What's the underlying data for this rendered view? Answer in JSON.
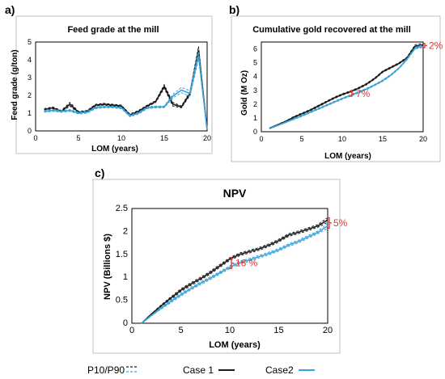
{
  "panels": {
    "a": "a)",
    "b": "b)",
    "c": "c)"
  },
  "legend": {
    "p10p90": "P10/P90",
    "case1": "Case 1",
    "case2": "Case2"
  },
  "colors": {
    "case1": "#1a1a1a",
    "case2": "#3aa3dc",
    "annotation": "#e8302a"
  },
  "chart_data": [
    {
      "id": "a",
      "type": "line",
      "title": "Feed grade at the mill",
      "xlabel": "LOM (years)",
      "ylabel": "Feed grade (g/ton)",
      "xlim": [
        0,
        20
      ],
      "ylim": [
        0,
        5
      ],
      "xticks": [
        0,
        5,
        10,
        15,
        20
      ],
      "yticks": [
        0,
        1,
        2,
        3,
        4,
        5
      ],
      "x": [
        1,
        2,
        3,
        4,
        5,
        6,
        7,
        8,
        9,
        10,
        11,
        12,
        13,
        14,
        15,
        16,
        17,
        18,
        19,
        20
      ],
      "series": [
        {
          "name": "Case 1",
          "values": [
            1.2,
            1.3,
            1.1,
            1.5,
            1.05,
            1.1,
            1.45,
            1.5,
            1.45,
            1.4,
            0.9,
            1.1,
            1.4,
            1.65,
            2.5,
            1.5,
            1.35,
            2.1,
            4.55,
            0.05
          ],
          "p10": [
            1.15,
            1.25,
            1.05,
            1.4,
            1.0,
            1.05,
            1.4,
            1.45,
            1.4,
            1.35,
            0.85,
            1.05,
            1.35,
            1.6,
            2.4,
            1.4,
            1.3,
            2.0,
            4.3,
            0.05
          ],
          "p90": [
            1.25,
            1.35,
            1.15,
            1.6,
            1.1,
            1.15,
            1.5,
            1.55,
            1.5,
            1.45,
            0.95,
            1.15,
            1.45,
            1.7,
            2.6,
            1.6,
            1.4,
            2.2,
            4.75,
            0.05
          ]
        },
        {
          "name": "Case2",
          "values": [
            1.1,
            1.15,
            1.1,
            1.15,
            1.0,
            1.05,
            1.3,
            1.35,
            1.35,
            1.3,
            0.85,
            1.0,
            1.3,
            1.35,
            1.35,
            1.95,
            2.3,
            2.1,
            4.25,
            0.05
          ],
          "p10": [
            1.05,
            1.1,
            1.05,
            1.1,
            0.95,
            1.0,
            1.25,
            1.3,
            1.3,
            1.25,
            0.8,
            0.95,
            1.25,
            1.3,
            1.3,
            1.85,
            2.15,
            1.95,
            4.05,
            0.05
          ],
          "p90": [
            1.15,
            1.2,
            1.15,
            1.2,
            1.05,
            1.1,
            1.35,
            1.4,
            1.4,
            1.35,
            0.9,
            1.05,
            1.35,
            1.4,
            1.4,
            2.05,
            2.45,
            2.25,
            4.45,
            0.05
          ]
        }
      ]
    },
    {
      "id": "b",
      "type": "line",
      "title": "Cumulative gold recovered at the mill",
      "xlabel": "LOM (years)",
      "ylabel": "Gold (M Oz)",
      "xlim": [
        0,
        20
      ],
      "ylim": [
        0,
        6.5
      ],
      "xticks": [
        0,
        5,
        10,
        15,
        20
      ],
      "yticks": [
        0,
        1,
        2,
        3,
        4,
        5,
        6
      ],
      "x": [
        1,
        2,
        3,
        4,
        5,
        6,
        7,
        8,
        9,
        10,
        11,
        12,
        13,
        14,
        15,
        16,
        17,
        18,
        19,
        20
      ],
      "series": [
        {
          "name": "Case 1",
          "values": [
            0.25,
            0.5,
            0.75,
            1.05,
            1.3,
            1.55,
            1.85,
            2.15,
            2.45,
            2.7,
            2.9,
            3.15,
            3.45,
            3.85,
            4.35,
            4.65,
            4.95,
            5.35,
            6.2,
            6.3
          ],
          "p10": [
            0.24,
            0.48,
            0.72,
            1.0,
            1.25,
            1.5,
            1.8,
            2.1,
            2.4,
            2.65,
            2.85,
            3.1,
            3.4,
            3.8,
            4.3,
            4.6,
            4.9,
            5.3,
            6.1,
            6.2
          ],
          "p90": [
            0.26,
            0.52,
            0.78,
            1.1,
            1.35,
            1.6,
            1.9,
            2.2,
            2.5,
            2.75,
            2.95,
            3.2,
            3.5,
            3.9,
            4.4,
            4.7,
            5.0,
            5.4,
            6.3,
            6.4
          ]
        },
        {
          "name": "Case2",
          "values": [
            0.22,
            0.45,
            0.68,
            0.92,
            1.15,
            1.4,
            1.65,
            1.9,
            2.15,
            2.4,
            2.62,
            2.85,
            3.1,
            3.38,
            3.7,
            4.1,
            4.6,
            5.25,
            6.05,
            6.2
          ],
          "p10": [
            0.21,
            0.43,
            0.65,
            0.88,
            1.1,
            1.35,
            1.6,
            1.85,
            2.1,
            2.35,
            2.57,
            2.8,
            3.05,
            3.33,
            3.65,
            4.05,
            4.55,
            5.2,
            6.0,
            6.1
          ],
          "p90": [
            0.23,
            0.47,
            0.71,
            0.96,
            1.2,
            1.45,
            1.7,
            1.95,
            2.2,
            2.45,
            2.67,
            2.9,
            3.15,
            3.43,
            3.75,
            4.15,
            4.65,
            5.3,
            6.1,
            6.3
          ]
        }
      ],
      "annotations": [
        {
          "text": "7%",
          "x": 11
        },
        {
          "text": "2%",
          "x": 20
        }
      ]
    },
    {
      "id": "c",
      "type": "line",
      "title": "NPV",
      "xlabel": "LOM (years)",
      "ylabel": "NPV (Billions $)",
      "xlim": [
        0,
        20
      ],
      "ylim": [
        0,
        2.5
      ],
      "xticks": [
        0,
        5,
        10,
        15,
        20
      ],
      "yticks": [
        0,
        0.5,
        1,
        1.5,
        2,
        2.5
      ],
      "x": [
        1,
        2,
        3,
        4,
        5,
        6,
        7,
        8,
        9,
        10,
        11,
        12,
        13,
        14,
        15,
        16,
        17,
        18,
        19,
        20
      ],
      "series": [
        {
          "name": "Case 1",
          "values": [
            0.0,
            0.2,
            0.38,
            0.55,
            0.72,
            0.85,
            0.97,
            1.1,
            1.25,
            1.4,
            1.5,
            1.56,
            1.62,
            1.7,
            1.8,
            1.92,
            1.98,
            2.05,
            2.12,
            2.25
          ],
          "p10": [
            0.0,
            0.19,
            0.36,
            0.52,
            0.69,
            0.82,
            0.94,
            1.07,
            1.22,
            1.37,
            1.47,
            1.53,
            1.59,
            1.67,
            1.77,
            1.89,
            1.95,
            2.02,
            2.09,
            2.2
          ],
          "p90": [
            0.0,
            0.21,
            0.4,
            0.58,
            0.75,
            0.88,
            1.0,
            1.13,
            1.28,
            1.43,
            1.53,
            1.59,
            1.65,
            1.73,
            1.83,
            1.95,
            2.01,
            2.08,
            2.15,
            2.3
          ]
        },
        {
          "name": "Case2",
          "values": [
            0.0,
            0.17,
            0.33,
            0.48,
            0.62,
            0.75,
            0.87,
            0.98,
            1.1,
            1.22,
            1.32,
            1.38,
            1.45,
            1.52,
            1.6,
            1.7,
            1.78,
            1.88,
            1.98,
            2.12
          ],
          "p10": [
            0.0,
            0.16,
            0.31,
            0.45,
            0.59,
            0.72,
            0.84,
            0.95,
            1.07,
            1.19,
            1.29,
            1.35,
            1.42,
            1.49,
            1.57,
            1.67,
            1.75,
            1.85,
            1.95,
            2.07
          ],
          "p90": [
            0.0,
            0.18,
            0.35,
            0.51,
            0.65,
            0.78,
            0.9,
            1.01,
            1.13,
            1.25,
            1.35,
            1.41,
            1.48,
            1.55,
            1.63,
            1.73,
            1.81,
            1.91,
            2.01,
            2.17
          ]
        }
      ],
      "annotations": [
        {
          "text": "16 %",
          "x": 10
        },
        {
          "text": "5%",
          "x": 20
        }
      ]
    }
  ]
}
